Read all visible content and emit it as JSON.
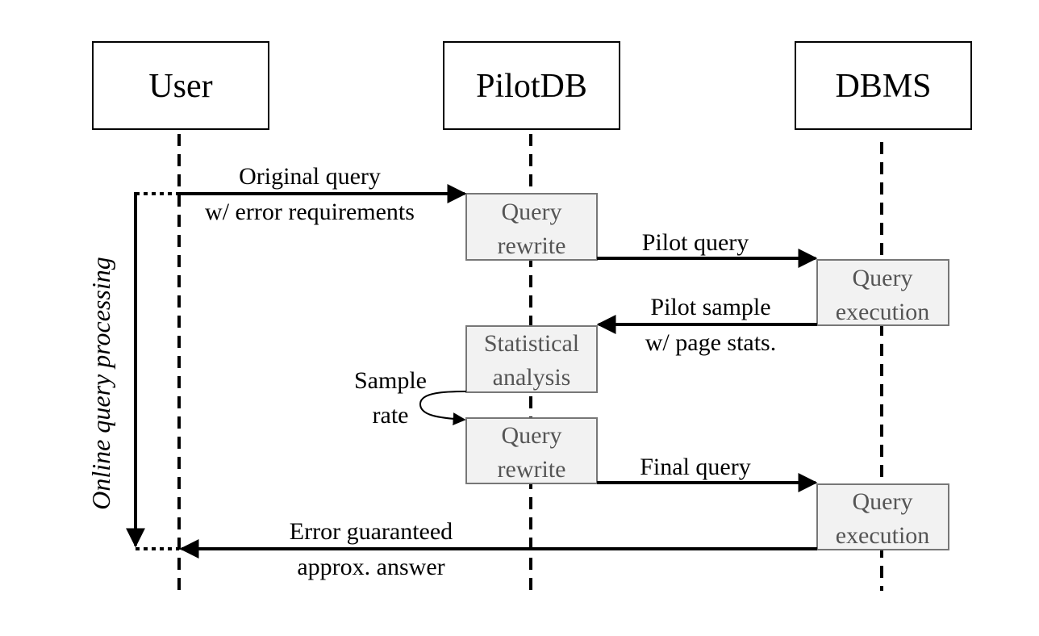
{
  "actors": {
    "user": "User",
    "pilotdb": "PilotDB",
    "dbms": "DBMS"
  },
  "boxes": {
    "query_rewrite_1": [
      "Query",
      "rewrite"
    ],
    "query_execution_1": [
      "Query",
      "execution"
    ],
    "statistical_analysis": [
      "Statistical",
      "analysis"
    ],
    "query_rewrite_2": [
      "Query",
      "rewrite"
    ],
    "query_execution_2": [
      "Query",
      "execution"
    ]
  },
  "messages": {
    "original_query": [
      "Original query",
      "w/ error requirements"
    ],
    "pilot_query": "Pilot query",
    "pilot_sample": [
      "Pilot sample",
      "w/ page stats."
    ],
    "sample_rate": [
      "Sample",
      "rate"
    ],
    "final_query": "Final query",
    "answer": [
      "Error guaranteed",
      "approx. answer"
    ]
  },
  "side_label": "Online query processing",
  "colors": {
    "box_fill": "#f2f2f2",
    "box_stroke": "#777777",
    "box_text": "#555555",
    "line": "#000000"
  }
}
